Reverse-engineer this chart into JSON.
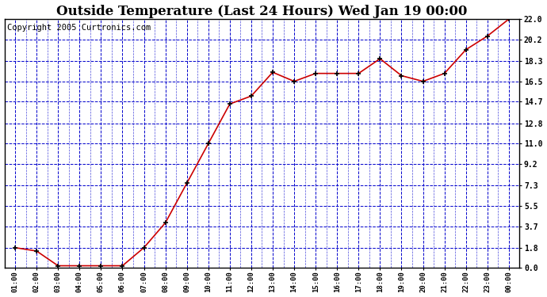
{
  "title": "Outside Temperature (Last 24 Hours) Wed Jan 19 00:00",
  "copyright": "Copyright 2005 Curtronics.com",
  "x_labels": [
    "01:00",
    "02:00",
    "03:00",
    "04:00",
    "05:00",
    "06:00",
    "07:00",
    "08:00",
    "09:00",
    "10:00",
    "11:00",
    "12:00",
    "13:00",
    "14:00",
    "15:00",
    "16:00",
    "17:00",
    "18:00",
    "19:00",
    "20:00",
    "21:00",
    "22:00",
    "23:00",
    "00:00"
  ],
  "y_values": [
    1.8,
    1.5,
    0.2,
    0.2,
    0.2,
    0.2,
    1.8,
    4.0,
    7.5,
    11.0,
    14.5,
    15.2,
    17.3,
    16.5,
    17.2,
    17.2,
    17.2,
    18.5,
    17.0,
    16.5,
    17.2,
    19.3,
    20.5,
    22.0
  ],
  "y_ticks": [
    0.0,
    1.8,
    3.7,
    5.5,
    7.3,
    9.2,
    11.0,
    12.8,
    14.7,
    16.5,
    18.3,
    20.2,
    22.0
  ],
  "ylim": [
    0.0,
    22.0
  ],
  "line_color": "#cc0000",
  "marker_color": "#000000",
  "bg_color": "#ffffff",
  "grid_color": "#0000cc",
  "title_fontsize": 12,
  "copyright_fontsize": 7.5,
  "fig_width": 6.9,
  "fig_height": 3.75,
  "dpi": 100
}
